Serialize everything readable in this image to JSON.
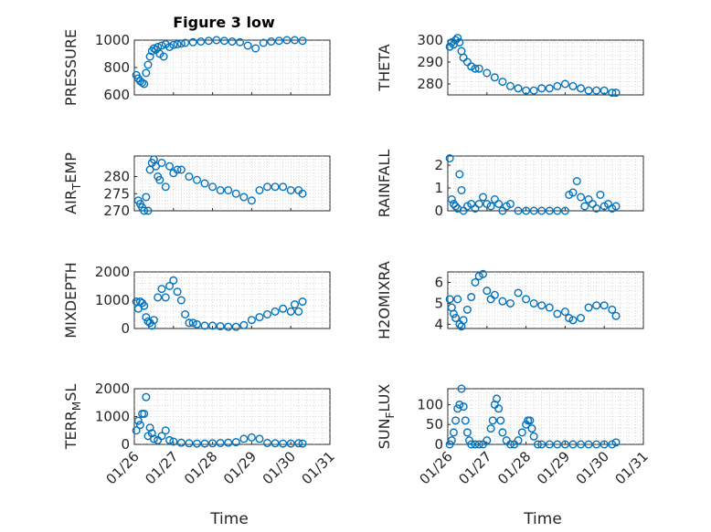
{
  "figure": {
    "title": "Figure 3 low",
    "time_label": "Time",
    "x_ticks": [
      "01/26",
      "01/27",
      "01/28",
      "01/29",
      "01/30",
      "01/31"
    ],
    "marker_color": "#0072BD"
  },
  "chart_data": [
    {
      "type": "scatter",
      "ylabel": "PRESSURE",
      "ylabel_sub": "",
      "ylabel_post": "",
      "ylim": [
        600,
        1000
      ],
      "yticks": [
        600,
        800,
        1000
      ],
      "x_domain": [
        0,
        5
      ],
      "x": [
        0.05,
        0.1,
        0.15,
        0.2,
        0.25,
        0.3,
        0.35,
        0.4,
        0.45,
        0.5,
        0.55,
        0.6,
        0.65,
        0.7,
        0.75,
        0.8,
        0.9,
        1.0,
        1.1,
        1.2,
        1.3,
        1.5,
        1.7,
        1.9,
        2.1,
        2.3,
        2.5,
        2.7,
        2.9,
        3.1,
        3.3,
        3.5,
        3.7,
        3.9,
        4.1,
        4.3
      ],
      "y": [
        745,
        720,
        700,
        690,
        680,
        760,
        820,
        880,
        920,
        940,
        930,
        950,
        900,
        960,
        880,
        970,
        950,
        965,
        970,
        975,
        980,
        985,
        990,
        995,
        1000,
        995,
        990,
        985,
        960,
        940,
        980,
        990,
        995,
        1000,
        1000,
        995
      ]
    },
    {
      "type": "scatter",
      "ylabel": "THETA",
      "ylabel_sub": "",
      "ylabel_post": "",
      "ylim": [
        275,
        300
      ],
      "yticks": [
        280,
        290,
        300
      ],
      "x_domain": [
        0,
        5
      ],
      "x": [
        0.05,
        0.1,
        0.15,
        0.2,
        0.25,
        0.3,
        0.35,
        0.4,
        0.5,
        0.6,
        0.7,
        0.8,
        1.0,
        1.2,
        1.4,
        1.6,
        1.8,
        2.0,
        2.2,
        2.4,
        2.6,
        2.8,
        3.0,
        3.2,
        3.4,
        3.6,
        3.8,
        4.0,
        4.2,
        4.3
      ],
      "y": [
        297,
        299,
        298,
        300,
        301,
        299,
        295,
        292,
        290,
        288,
        287,
        287,
        285,
        283,
        281,
        279,
        278,
        277,
        277,
        278,
        278,
        279,
        280,
        279,
        278,
        277,
        277,
        277,
        276,
        276
      ]
    },
    {
      "type": "scatter",
      "ylabel": "AIR",
      "ylabel_sub": "T",
      "ylabel_post": "EMP",
      "ylim": [
        270,
        286
      ],
      "yticks": [
        270,
        275,
        280
      ],
      "x_domain": [
        0,
        5
      ],
      "x": [
        0.1,
        0.15,
        0.2,
        0.25,
        0.3,
        0.35,
        0.4,
        0.45,
        0.5,
        0.55,
        0.6,
        0.65,
        0.7,
        0.8,
        0.9,
        1.0,
        1.1,
        1.2,
        1.4,
        1.6,
        1.8,
        2.0,
        2.2,
        2.4,
        2.6,
        2.8,
        3.0,
        3.2,
        3.4,
        3.6,
        3.8,
        4.0,
        4.2,
        4.3
      ],
      "y": [
        273,
        272,
        271,
        270,
        274,
        270,
        282,
        284,
        285,
        283,
        280,
        279,
        284,
        277,
        283,
        281,
        282,
        282,
        280,
        279,
        278,
        277,
        276,
        276,
        275,
        274,
        273,
        276,
        277,
        277,
        277,
        276,
        276,
        275
      ]
    },
    {
      "type": "scatter",
      "ylabel": "RAINFALL",
      "ylabel_sub": "",
      "ylabel_post": "",
      "ylim": [
        0,
        2.4
      ],
      "yticks": [
        0,
        1,
        2
      ],
      "x_domain": [
        0,
        5
      ],
      "x": [
        0.05,
        0.1,
        0.15,
        0.2,
        0.25,
        0.3,
        0.35,
        0.4,
        0.5,
        0.6,
        0.7,
        0.8,
        0.9,
        1.0,
        1.1,
        1.2,
        1.3,
        1.4,
        1.5,
        1.6,
        1.8,
        2.0,
        2.2,
        2.4,
        2.6,
        2.8,
        3.0,
        3.1,
        3.2,
        3.3,
        3.4,
        3.5,
        3.6,
        3.7,
        3.8,
        3.9,
        4.0,
        4.1,
        4.2,
        4.3
      ],
      "y": [
        2.3,
        0.5,
        0.3,
        0.2,
        0.1,
        1.6,
        0.9,
        0,
        0.2,
        0.3,
        0.1,
        0.3,
        0.6,
        0.3,
        0.2,
        0.5,
        0.3,
        0,
        0.2,
        0.3,
        0,
        0,
        0,
        0,
        0,
        0,
        0,
        0.7,
        0.8,
        1.3,
        0.6,
        0.2,
        0.5,
        0.3,
        0.1,
        0.7,
        0.2,
        0.3,
        0.1,
        0.2
      ]
    },
    {
      "type": "scatter",
      "ylabel": "MIXDEPTH",
      "ylabel_sub": "",
      "ylabel_post": "",
      "ylim": [
        0,
        2000
      ],
      "yticks": [
        0,
        1000,
        2000
      ],
      "x_domain": [
        0,
        5
      ],
      "x": [
        0.05,
        0.1,
        0.15,
        0.2,
        0.25,
        0.3,
        0.35,
        0.4,
        0.45,
        0.5,
        0.6,
        0.7,
        0.8,
        0.9,
        1.0,
        1.1,
        1.2,
        1.3,
        1.4,
        1.5,
        1.6,
        1.8,
        2.0,
        2.2,
        2.4,
        2.6,
        2.8,
        3.0,
        3.2,
        3.4,
        3.6,
        3.8,
        4.0,
        4.1,
        4.2,
        4.3
      ],
      "y": [
        950,
        700,
        950,
        900,
        800,
        400,
        250,
        200,
        100,
        300,
        1100,
        1400,
        1100,
        1500,
        1700,
        1300,
        1000,
        500,
        200,
        200,
        150,
        100,
        100,
        80,
        60,
        60,
        120,
        300,
        400,
        500,
        600,
        700,
        600,
        850,
        600,
        950
      ]
    },
    {
      "type": "scatter",
      "ylabel": "H2OMIXRA",
      "ylabel_sub": "",
      "ylabel_post": "",
      "ylim": [
        3.8,
        6.5
      ],
      "yticks": [
        4,
        5,
        6
      ],
      "x_domain": [
        0,
        5
      ],
      "x": [
        0.05,
        0.1,
        0.15,
        0.2,
        0.25,
        0.3,
        0.35,
        0.4,
        0.5,
        0.6,
        0.7,
        0.8,
        0.9,
        1.0,
        1.1,
        1.2,
        1.4,
        1.6,
        1.8,
        2.0,
        2.2,
        2.4,
        2.6,
        2.8,
        3.0,
        3.1,
        3.2,
        3.4,
        3.6,
        3.8,
        4.0,
        4.2,
        4.3
      ],
      "y": [
        5.2,
        4.8,
        4.5,
        4.3,
        5.2,
        4.0,
        3.9,
        4.2,
        4.7,
        5.3,
        6.0,
        6.3,
        6.4,
        5.6,
        5.2,
        5.4,
        5.1,
        5.0,
        5.5,
        5.2,
        5.0,
        4.9,
        4.8,
        4.5,
        4.6,
        4.3,
        4.2,
        4.3,
        4.8,
        4.9,
        4.9,
        4.7,
        4.4
      ]
    },
    {
      "type": "scatter",
      "ylabel": "TERR",
      "ylabel_sub": "M",
      "ylabel_post": "SL",
      "ylim": [
        0,
        2000
      ],
      "yticks": [
        0,
        1000,
        2000
      ],
      "x_domain": [
        0,
        5
      ],
      "x": [
        0.05,
        0.1,
        0.15,
        0.2,
        0.25,
        0.3,
        0.35,
        0.4,
        0.45,
        0.5,
        0.6,
        0.7,
        0.8,
        0.9,
        1.0,
        1.2,
        1.4,
        1.6,
        1.8,
        2.0,
        2.2,
        2.4,
        2.6,
        2.8,
        3.0,
        3.2,
        3.4,
        3.6,
        3.8,
        4.0,
        4.2,
        4.3
      ],
      "y": [
        500,
        850,
        700,
        1100,
        1100,
        1700,
        300,
        600,
        400,
        200,
        150,
        300,
        500,
        150,
        100,
        60,
        40,
        30,
        30,
        40,
        50,
        60,
        80,
        200,
        250,
        200,
        50,
        40,
        30,
        30,
        40,
        30
      ]
    },
    {
      "type": "scatter",
      "ylabel": "SUN",
      "ylabel_sub": "F",
      "ylabel_post": "LUX",
      "ylim": [
        0,
        140
      ],
      "yticks": [
        0,
        50,
        100
      ],
      "x_domain": [
        0,
        5
      ],
      "x": [
        0.05,
        0.1,
        0.15,
        0.2,
        0.25,
        0.3,
        0.35,
        0.4,
        0.45,
        0.5,
        0.55,
        0.6,
        0.7,
        0.8,
        0.9,
        1.0,
        1.1,
        1.15,
        1.2,
        1.25,
        1.3,
        1.35,
        1.4,
        1.5,
        1.6,
        1.7,
        1.8,
        1.9,
        2.0,
        2.05,
        2.1,
        2.15,
        2.2,
        2.3,
        2.4,
        2.6,
        2.8,
        3.0,
        3.2,
        3.4,
        3.6,
        3.8,
        4.0,
        4.2,
        4.3
      ],
      "y": [
        0,
        10,
        30,
        60,
        90,
        100,
        140,
        95,
        60,
        30,
        10,
        0,
        0,
        0,
        0,
        10,
        40,
        60,
        100,
        115,
        90,
        60,
        30,
        10,
        0,
        0,
        10,
        30,
        50,
        60,
        60,
        40,
        20,
        0,
        0,
        0,
        0,
        0,
        0,
        0,
        0,
        0,
        0,
        0,
        5
      ]
    }
  ]
}
